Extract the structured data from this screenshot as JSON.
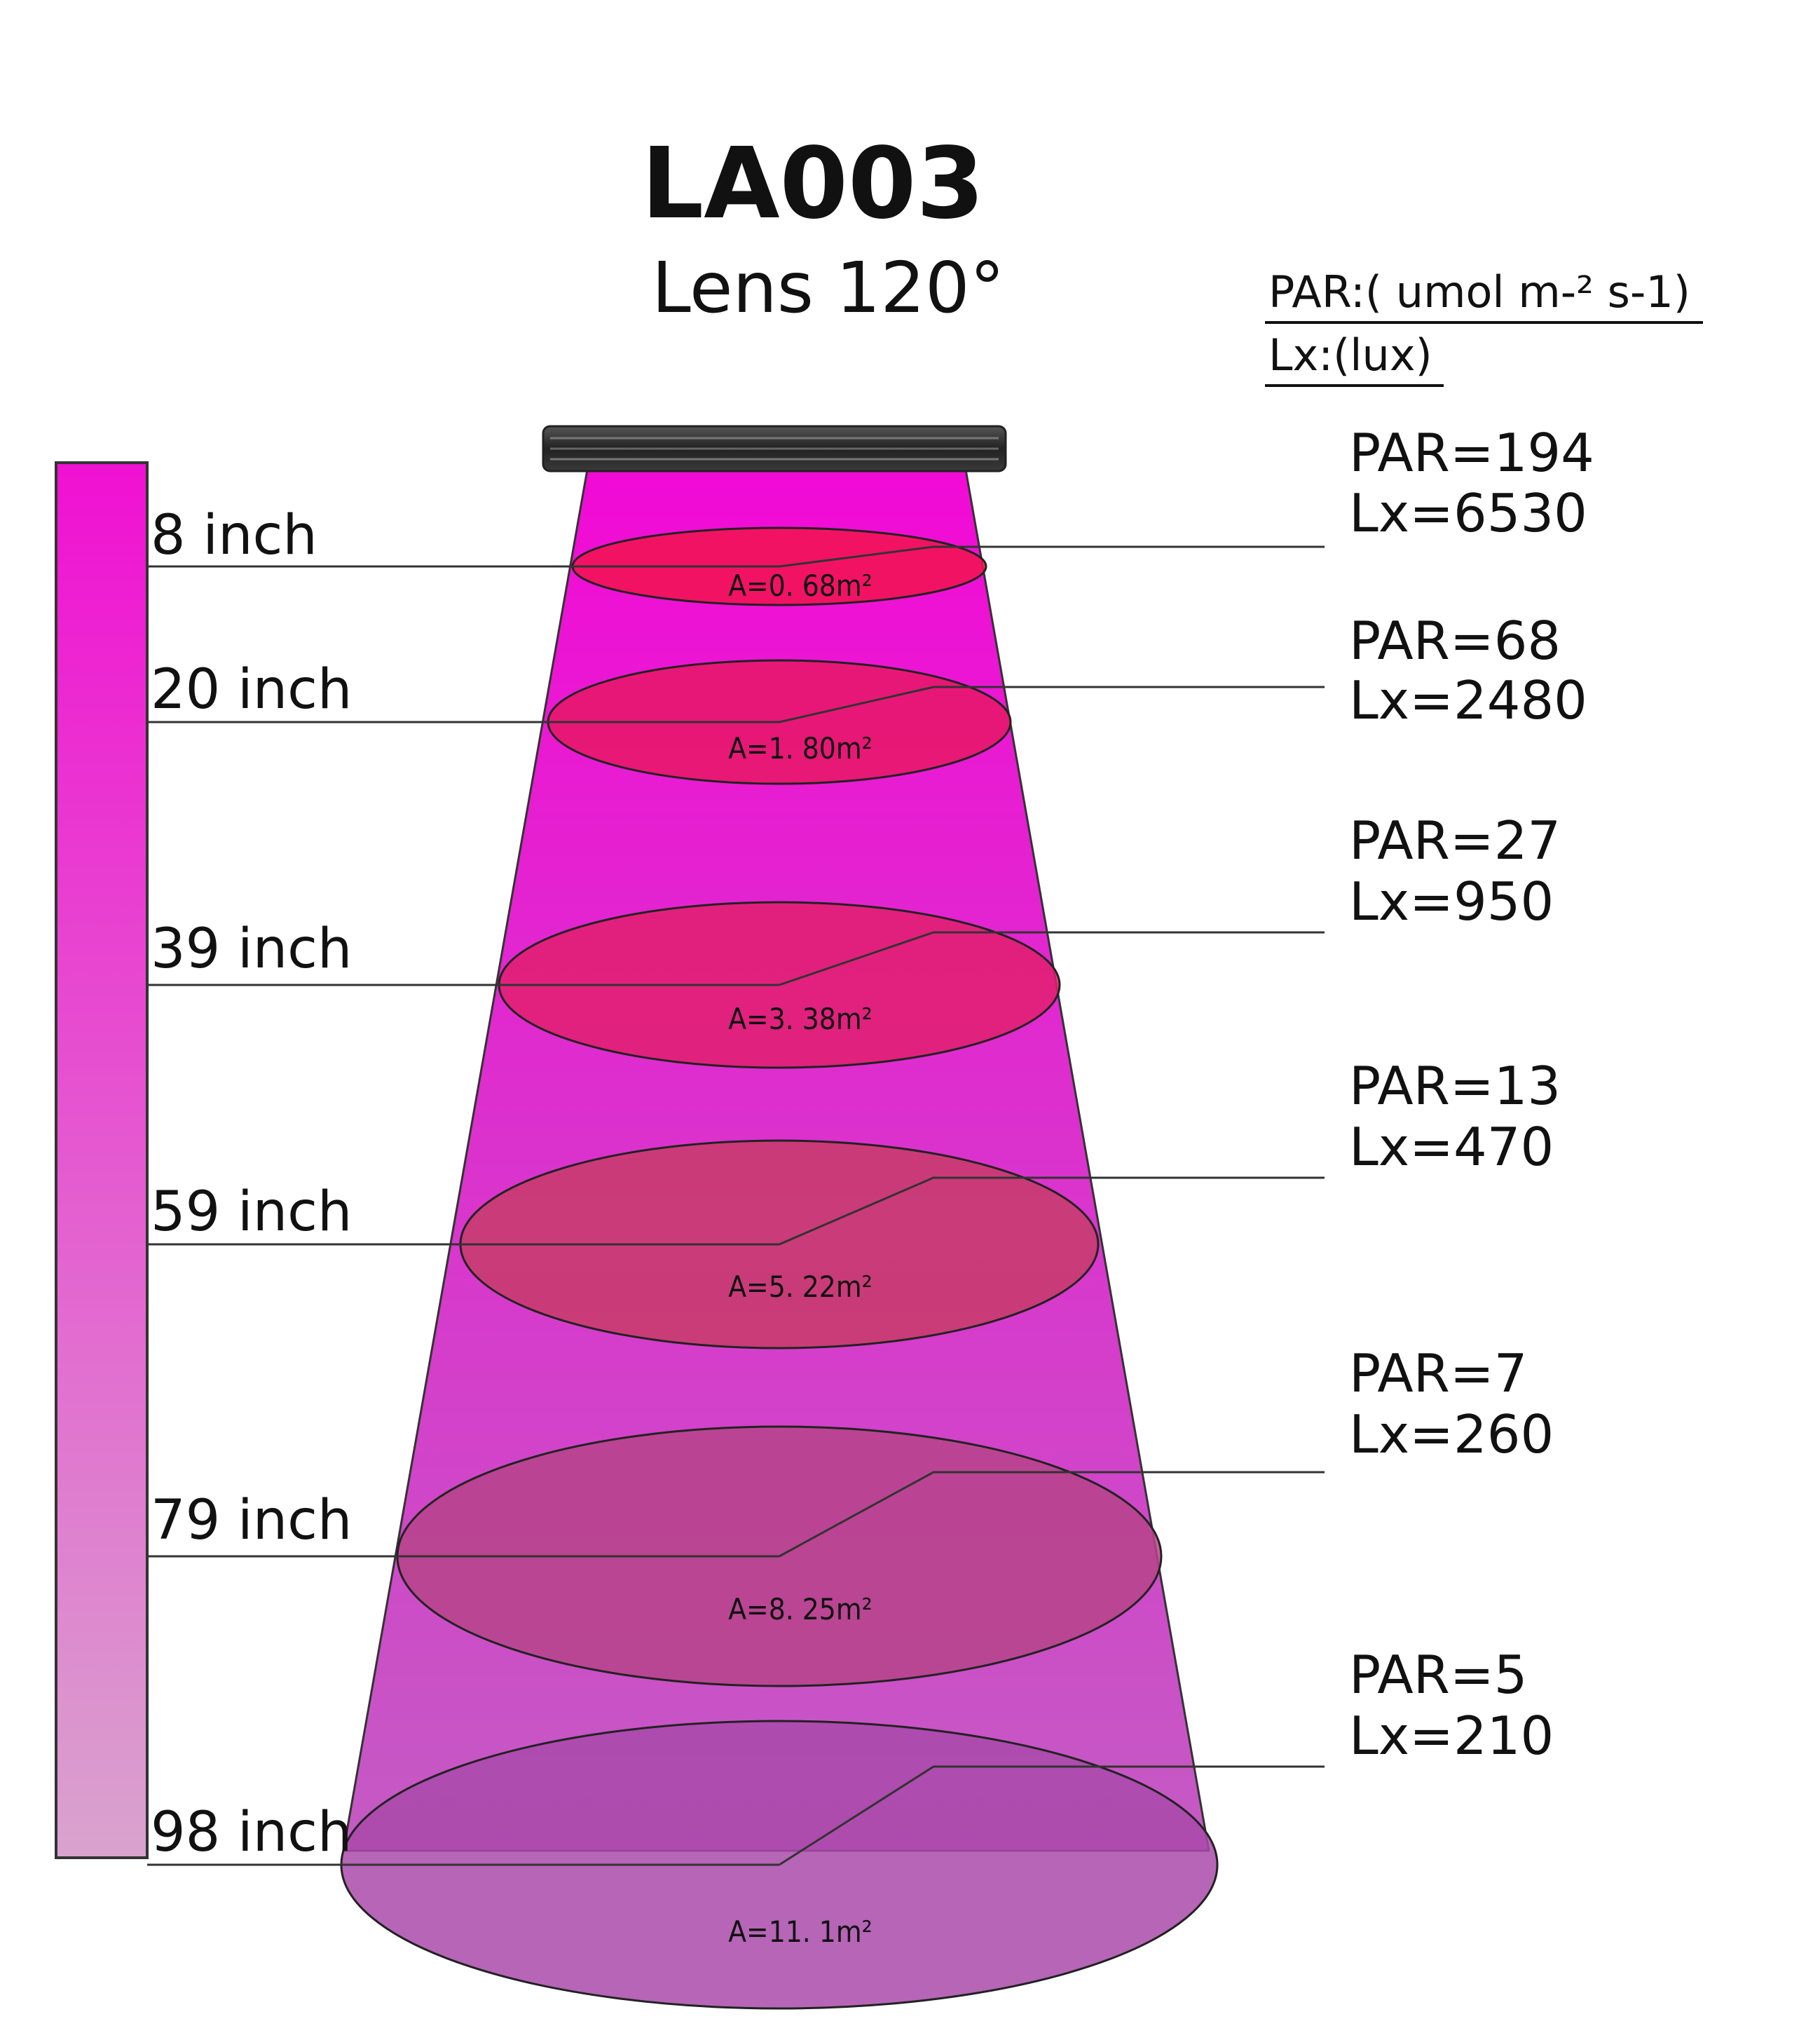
{
  "title": "LA003",
  "subtitle": "Lens 120°",
  "legend": {
    "par_unit": "PAR:( umol m-² s-1)",
    "lx_unit": "Lx:(lux)"
  },
  "colors": {
    "beam_top": "#f20ad6",
    "beam_bottom": "#c45bc4",
    "scale_top": "#f011d2",
    "scale_bottom": "#d9a3ce",
    "ellipse_fills": [
      "#f2134f",
      "#e61866",
      "#e0206e",
      "#c73c6a",
      "#b6448a",
      "#a94aaa"
    ]
  },
  "levels": [
    {
      "distance": "8 inch",
      "par": "PAR=194",
      "lx": "Lx=6530",
      "area": "A=0. 68m²"
    },
    {
      "distance": "20 inch",
      "par": "PAR=68",
      "lx": "Lx=2480",
      "area": "A=1. 80m²"
    },
    {
      "distance": "39 inch",
      "par": "PAR=27",
      "lx": "Lx=950",
      "area": "A=3. 38m²"
    },
    {
      "distance": "59 inch",
      "par": "PAR=13",
      "lx": "Lx=470",
      "area": "A=5. 22m²"
    },
    {
      "distance": "79 inch",
      "par": "PAR=7",
      "lx": "Lx=260",
      "area": "A=8. 25m²"
    },
    {
      "distance": "98 inch",
      "par": "PAR=5",
      "lx": "Lx=210",
      "area": "A=11. 1m²"
    }
  ]
}
